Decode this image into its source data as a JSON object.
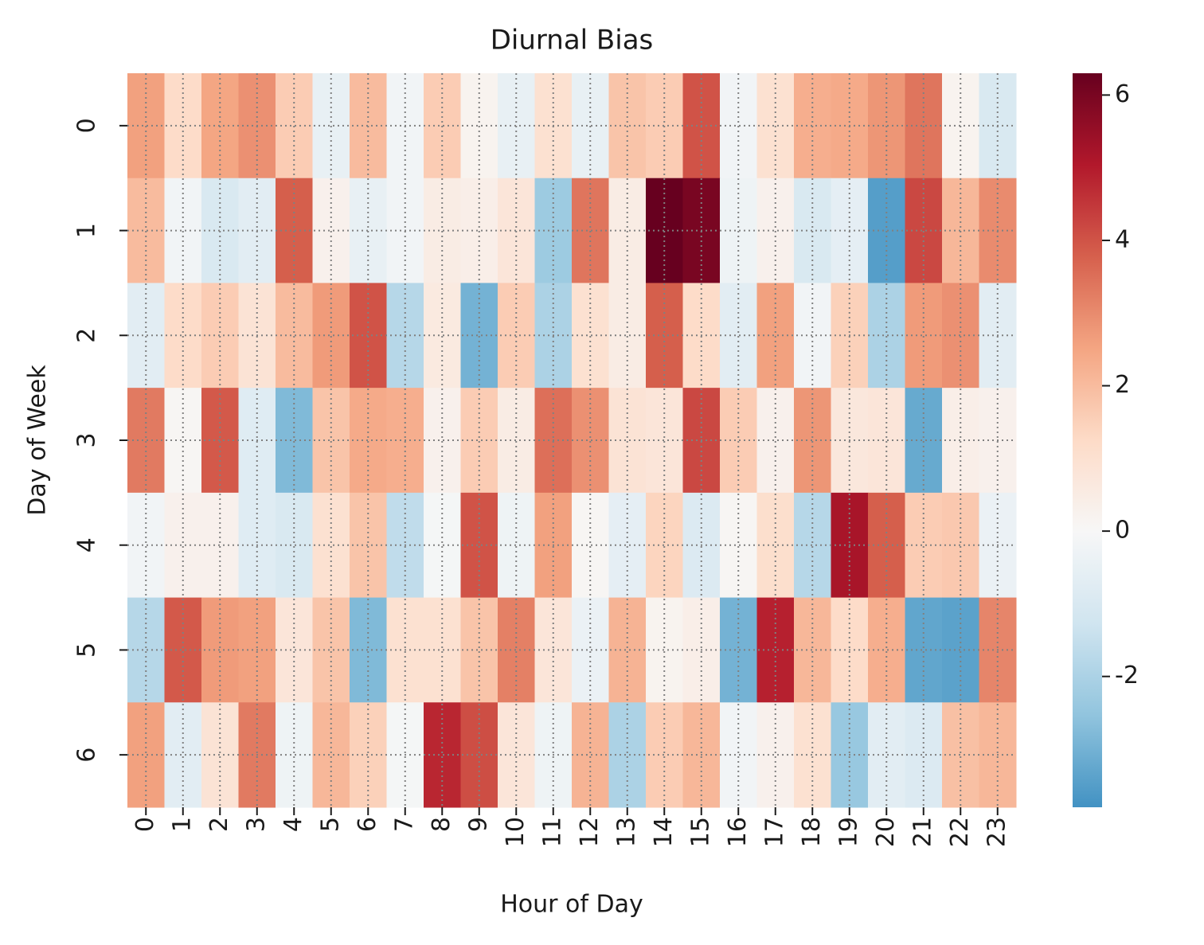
{
  "chart_data": {
    "type": "heatmap",
    "title": "Diurnal Bias",
    "xlabel": "Hour of Day",
    "ylabel": "Day of Week",
    "x_categories": [
      "0",
      "1",
      "2",
      "3",
      "4",
      "5",
      "6",
      "7",
      "8",
      "9",
      "10",
      "11",
      "12",
      "13",
      "14",
      "15",
      "16",
      "17",
      "18",
      "19",
      "20",
      "21",
      "22",
      "23"
    ],
    "y_categories": [
      "0",
      "1",
      "2",
      "3",
      "4",
      "5",
      "6"
    ],
    "values": [
      [
        2.6,
        1.2,
        2.5,
        2.9,
        1.6,
        -0.5,
        2.0,
        -0.2,
        1.6,
        0.2,
        -0.5,
        1.0,
        -0.5,
        1.8,
        1.6,
        4.0,
        -0.2,
        1.0,
        2.3,
        2.4,
        2.8,
        3.4,
        0.2,
        -1.0
      ],
      [
        2.0,
        -0.2,
        -1.0,
        -0.7,
        3.8,
        0.3,
        -0.5,
        -0.2,
        0.5,
        0.4,
        0.8,
        -2.3,
        3.4,
        0.5,
        6.3,
        6.0,
        -0.3,
        0.3,
        -1.0,
        -0.6,
        -3.5,
        4.2,
        2.1,
        3.0
      ],
      [
        -0.7,
        1.2,
        1.6,
        0.9,
        2.0,
        2.7,
        4.0,
        -1.8,
        0.6,
        -3.0,
        1.6,
        -2.0,
        1.0,
        0.5,
        3.8,
        1.2,
        -0.7,
        2.6,
        -0.2,
        1.5,
        -2.0,
        2.7,
        2.9,
        -0.7
      ],
      [
        3.3,
        0.1,
        3.9,
        -0.8,
        -2.8,
        1.8,
        2.4,
        2.3,
        0.3,
        1.6,
        0.5,
        3.5,
        2.9,
        0.9,
        0.8,
        4.2,
        1.6,
        0.3,
        2.8,
        0.7,
        0.8,
        -3.2,
        0.4,
        0.3
      ],
      [
        -0.2,
        0.3,
        0.3,
        -0.8,
        -1.0,
        1.0,
        1.8,
        -1.6,
        -0.1,
        4.0,
        -0.3,
        2.6,
        0.1,
        -0.6,
        1.4,
        -0.9,
        0.1,
        1.1,
        -1.8,
        5.2,
        3.8,
        1.6,
        1.7,
        -0.4
      ],
      [
        -1.8,
        3.9,
        2.7,
        2.6,
        0.8,
        1.8,
        -2.8,
        1.0,
        1.0,
        1.8,
        3.2,
        0.8,
        -0.4,
        2.2,
        0.2,
        0.4,
        -3.0,
        4.9,
        2.1,
        1.2,
        2.3,
        -3.3,
        -3.4,
        3.1
      ],
      [
        2.6,
        -0.7,
        0.9,
        3.3,
        -0.3,
        2.1,
        1.5,
        -0.1,
        4.8,
        4.1,
        0.8,
        -0.3,
        2.2,
        -2.0,
        1.6,
        2.1,
        -0.2,
        0.3,
        1.0,
        -2.4,
        -0.7,
        -0.9,
        1.9,
        2.1
      ]
    ],
    "colormap": "RdBu_r",
    "center": 0,
    "clim": [
      -3.8,
      6.3
    ],
    "cticks": [
      -2,
      0,
      2,
      4,
      6
    ],
    "grid": true
  }
}
